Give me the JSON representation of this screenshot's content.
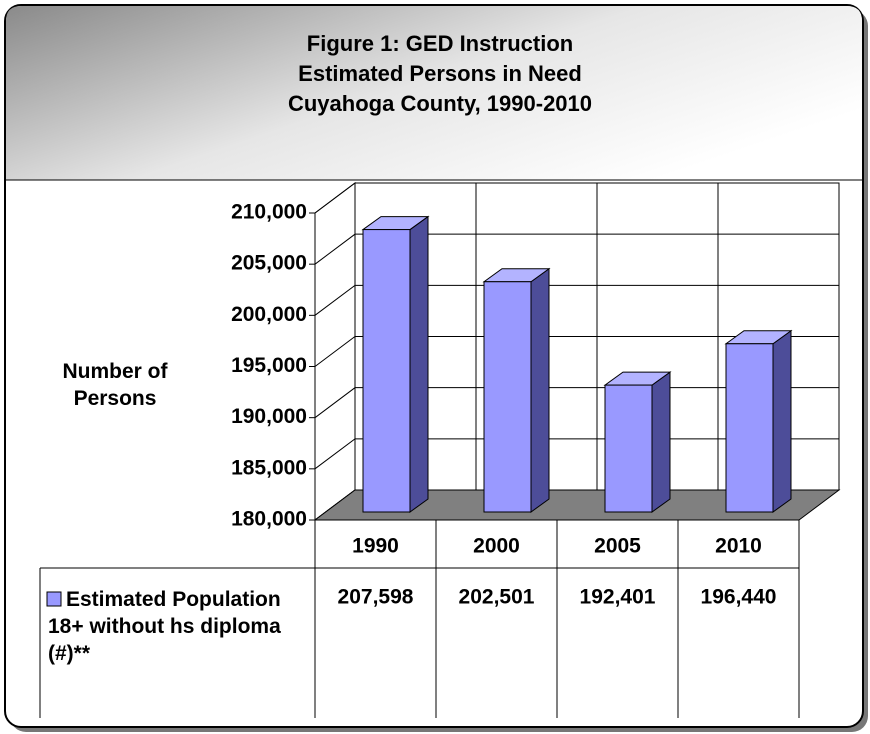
{
  "chart_data": {
    "type": "bar3d",
    "title": [
      "Figure 1:  GED Instruction",
      "Estimated Persons in Need",
      "Cuyahoga County, 1990-2010"
    ],
    "y_label": "Number of Persons",
    "categories": [
      "1990",
      "2000",
      "2005",
      "2010"
    ],
    "series": [
      {
        "name": "Estimated Population 18+ without hs diploma (#)**",
        "color": "#9999ff",
        "values": [
          207598,
          202501,
          192401,
          196440
        ],
        "value_labels": [
          "207,598",
          "202,501",
          "192,401",
          "196,440"
        ]
      }
    ],
    "ylim": [
      180000,
      210000
    ],
    "yticks": [
      {
        "value": 180000,
        "label": "180,000"
      },
      {
        "value": 185000,
        "label": "185,000"
      },
      {
        "value": 190000,
        "label": "190,000"
      },
      {
        "value": 195000,
        "label": "195,000"
      },
      {
        "value": 200000,
        "label": "200,000"
      },
      {
        "value": 205000,
        "label": "205,000"
      },
      {
        "value": 210000,
        "label": "210,000"
      }
    ],
    "grid": true,
    "data_table": true
  }
}
